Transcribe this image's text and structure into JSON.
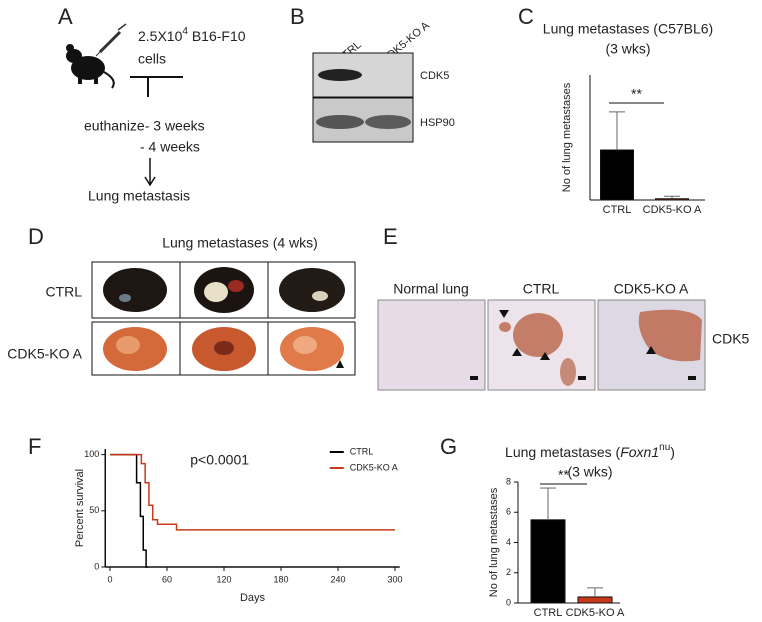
{
  "panel_labels": [
    "A",
    "B",
    "C",
    "D",
    "E",
    "F",
    "G"
  ],
  "panel_a": {
    "dose": "2.5X10",
    "exponent": "4",
    "cell_line": " B16-F10",
    "cells": "cells",
    "euthanize": "euthanize- 3 weeks",
    "second_time": "- 4 weeks",
    "outcome": "Lung metastasis"
  },
  "panel_b": {
    "lanes": [
      "CTRL",
      "CDK5-KO A"
    ],
    "bands": [
      "CDK5",
      "HSP90"
    ]
  },
  "panel_d": {
    "title": "Lung metastases (4 wks)",
    "rows": [
      "CTRL",
      "CDK5-KO A"
    ]
  },
  "panel_e": {
    "columns": [
      "Normal lung",
      "CTRL",
      "CDK5-KO A"
    ],
    "stain": "CDK5"
  },
  "chart_data": [
    {
      "type": "bar",
      "title": "Lung metastases (C57BL6)",
      "subtitle": "(3 wks)",
      "y_label": "No of lung metastases",
      "categories": [
        "CTRL",
        "CDK5-KO A"
      ],
      "values": [
        8,
        0.2
      ],
      "errors": [
        6.1,
        0.4
      ],
      "colors": [
        "#000000",
        "#c8391a"
      ],
      "ylim": [
        0,
        20
      ],
      "annotation": "**"
    },
    {
      "type": "line",
      "y_label": "Percent survival",
      "x_label": "Days",
      "annotation": "p<0.0001",
      "xlim": [
        -5,
        305
      ],
      "xticks": [
        0,
        60,
        120,
        180,
        240,
        300
      ],
      "ylim": [
        0,
        105
      ],
      "yticks": [
        0,
        50,
        100
      ],
      "legend": "top-right",
      "series": [
        {
          "name": "CTRL",
          "color": "#000000",
          "x": [
            0,
            28,
            28,
            32,
            32,
            35,
            35,
            38,
            38,
            40
          ],
          "values": [
            100,
            100,
            75,
            75,
            45,
            45,
            15,
            15,
            0,
            0
          ]
        },
        {
          "name": "CDK5-KO A",
          "color": "#c8391a",
          "x": [
            0,
            33,
            33,
            37,
            37,
            41,
            41,
            45,
            45,
            50,
            50,
            70,
            70,
            300
          ],
          "values": [
            100,
            100,
            92,
            92,
            75,
            75,
            55,
            55,
            42,
            42,
            38,
            38,
            33,
            33
          ]
        }
      ]
    },
    {
      "type": "bar",
      "title": {
        "start": "Lung metastases (",
        "italic": "Foxn1",
        "superscript": "nu",
        "end": ")"
      },
      "subtitle": "(3 wks)",
      "y_label": "No of lung metastases",
      "categories": [
        "CTRL",
        "CDK5-KO A"
      ],
      "values": [
        5.5,
        0.4
      ],
      "errors": [
        2.1,
        0.6
      ],
      "colors": [
        "#000000",
        "#c8391a"
      ],
      "ylim": [
        0,
        8
      ],
      "yticks": [
        0,
        2,
        4,
        6,
        8
      ],
      "annotation": "**"
    }
  ]
}
